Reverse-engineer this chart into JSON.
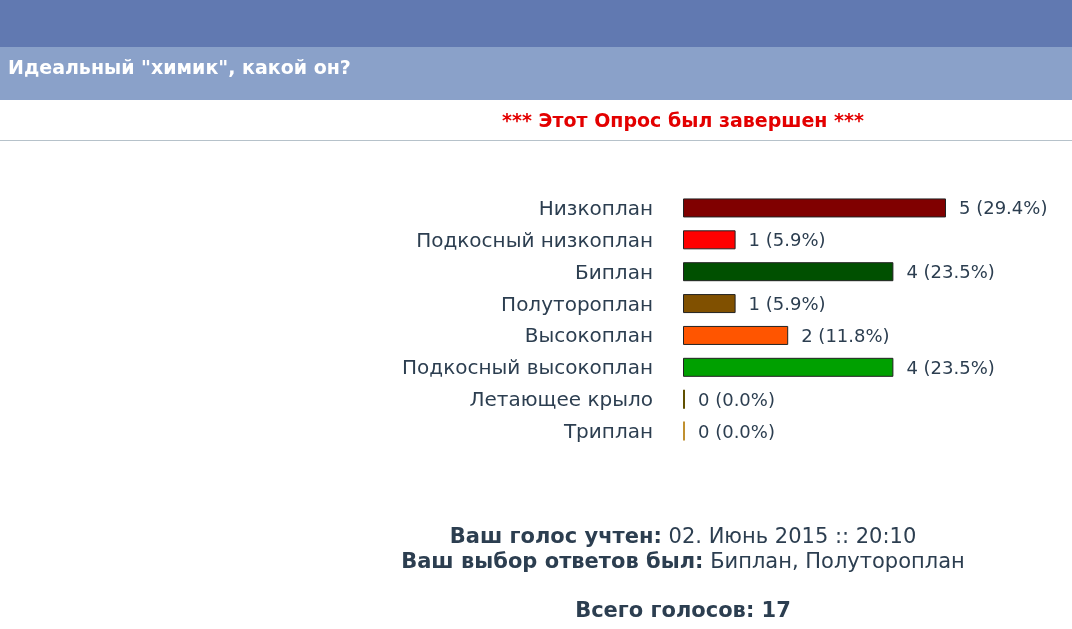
{
  "chart_data": {
    "type": "bar",
    "orientation": "horizontal",
    "title": "Идеальный \"химик\", какой он?",
    "subtitle": "*** Этот Опрос был завершен ***",
    "categories": [
      "Низкоплан",
      "Подкосный низкоплан",
      "Биплан",
      "Полутороплан",
      "Высокоплан",
      "Подкосный высокоплан",
      "Летающее крыло",
      "Триплан"
    ],
    "values": [
      5,
      1,
      4,
      1,
      2,
      4,
      0,
      0
    ],
    "colors": [
      "#800000",
      "#ff0000",
      "#005000",
      "#805000",
      "#ff5500",
      "#00a000",
      "#605000",
      "#c09030"
    ],
    "value_labels": [
      "5 (29.4%)",
      "1 (5.9%)",
      "4 (23.5%)",
      "1 (5.9%)",
      "2 (11.8%)",
      "4 (23.5%)",
      "0 (0.0%)",
      "0 (0.0%)"
    ],
    "tick_labels": "y",
    "grid": false,
    "annotations": [
      "Ваш голос учтен: 02. Июнь 2015 :: 20:10",
      "Ваш выбор ответов был: Биплан, Полутороплан",
      "Всего голосов: 17"
    ]
  }
}
